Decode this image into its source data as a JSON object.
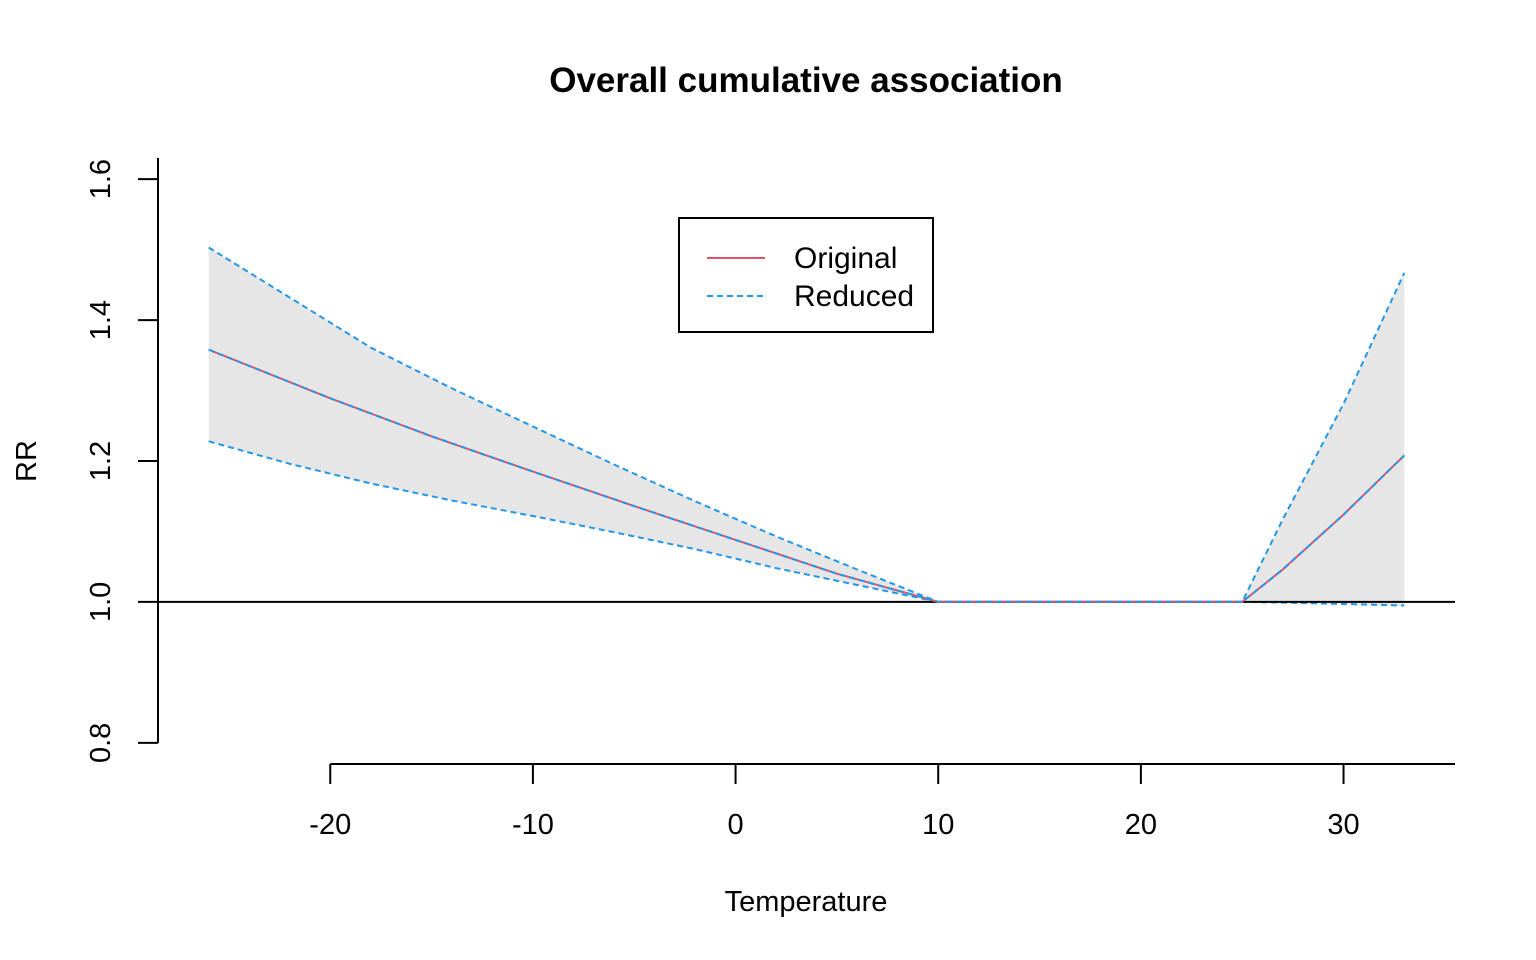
{
  "chart_data": {
    "type": "line",
    "title": "Overall cumulative association",
    "xlabel": "Temperature",
    "ylabel": "RR",
    "xlim": [
      -28.5,
      35.5
    ],
    "ylim": [
      0.77,
      1.63
    ],
    "x_ticks": [
      "-20",
      "-10",
      "0",
      "10",
      "20",
      "30"
    ],
    "y_ticks": [
      "0.8",
      "1.0",
      "1.2",
      "1.4",
      "1.6"
    ],
    "reference_line": 1.0,
    "grid": false,
    "legend_position": "top-center",
    "colors": {
      "original": "#DF536B",
      "reduced": "#2297E6",
      "band": "#E6E6E6"
    },
    "series": [
      {
        "name": "Original",
        "style": "solid",
        "x": [
          -26,
          -20,
          -15,
          -10,
          -5,
          0,
          5,
          10,
          15,
          20,
          25,
          27,
          30,
          33
        ],
        "y": [
          1.358,
          1.289,
          1.235,
          1.185,
          1.136,
          1.088,
          1.04,
          1.0,
          1.0,
          1.0,
          1.0,
          1.046,
          1.124,
          1.208
        ]
      },
      {
        "name": "Reduced",
        "style": "dashed",
        "x": [
          -26,
          -20,
          -15,
          -10,
          -5,
          0,
          5,
          10,
          15,
          20,
          25,
          27,
          30,
          33
        ],
        "y": [
          1.358,
          1.289,
          1.235,
          1.185,
          1.136,
          1.088,
          1.04,
          1.0,
          1.0,
          1.0,
          1.0,
          1.046,
          1.124,
          1.208
        ]
      }
    ],
    "confidence_band": {
      "x": [
        -26,
        -22,
        -18,
        -14,
        -10,
        -6,
        -2,
        2,
        6,
        10,
        15,
        20,
        25,
        27,
        30,
        33
      ],
      "upper": [
        1.503,
        1.432,
        1.361,
        1.303,
        1.249,
        1.195,
        1.143,
        1.093,
        1.046,
        1.0,
        1.0,
        1.0,
        1.0,
        1.117,
        1.281,
        1.467
      ],
      "lower": [
        1.228,
        1.196,
        1.168,
        1.144,
        1.122,
        1.099,
        1.075,
        1.048,
        1.024,
        1.0,
        1.0,
        1.0,
        1.0,
        0.999,
        0.997,
        0.995
      ]
    }
  }
}
